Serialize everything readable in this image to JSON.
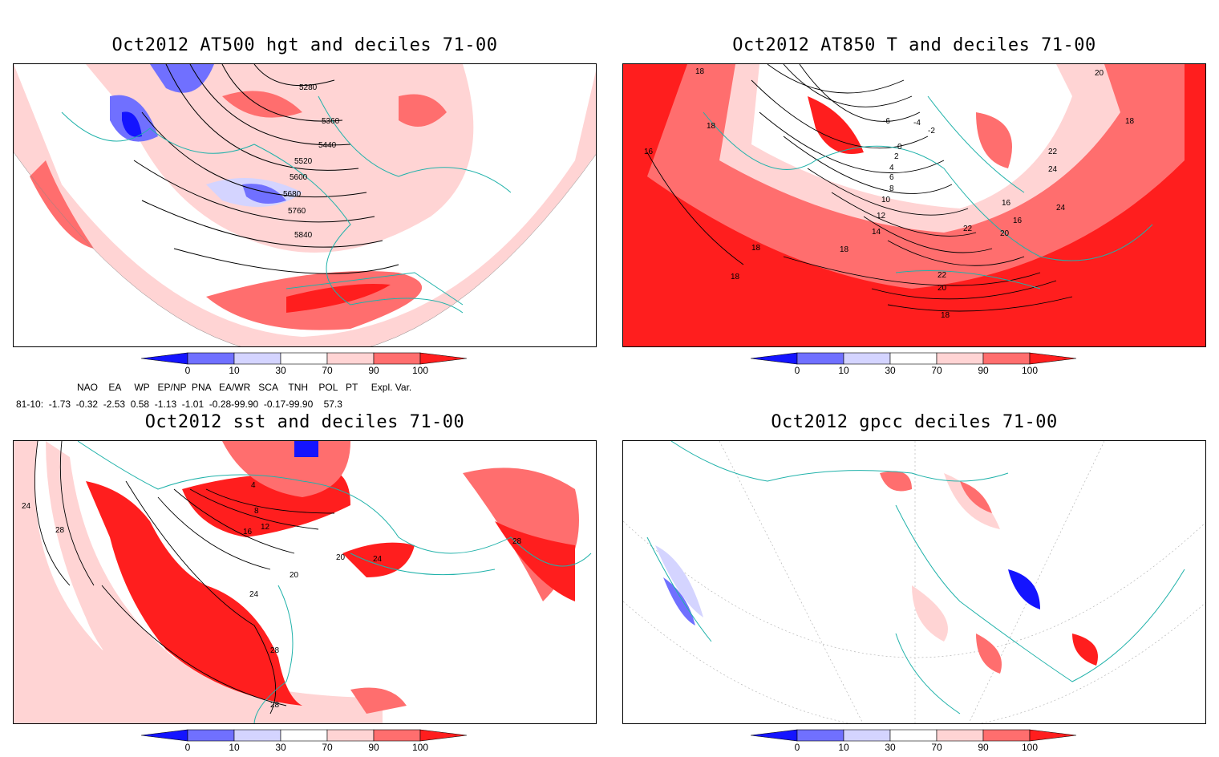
{
  "panels": [
    {
      "title": "Oct2012 AT500 hgt and deciles 71-00",
      "contour_labels": [
        "5280",
        "5360",
        "5440",
        "5520",
        "5600",
        "5680",
        "5760",
        "5840"
      ]
    },
    {
      "title": "Oct2012 AT850 T and deciles 71-00",
      "contour_labels": [
        "18",
        "18",
        "16",
        "18",
        "18",
        "18",
        "-6",
        "-4",
        "-2",
        "0",
        "2",
        "4",
        "6",
        "8",
        "10",
        "12",
        "14",
        "16",
        "16",
        "20",
        "22",
        "24",
        "24",
        "22",
        "20",
        "18",
        "22",
        "20",
        "18"
      ]
    },
    {
      "title": "Oct2012 sst and deciles 71-00",
      "contour_labels": [
        "24",
        "28",
        "4",
        "8",
        "12",
        "16",
        "20",
        "24",
        "28",
        "28",
        "20",
        "24",
        "28"
      ]
    },
    {
      "title": "Oct2012 gpcc deciles 71-00",
      "contour_labels": []
    }
  ],
  "colorbar": {
    "ticks": [
      "0",
      "10",
      "30",
      "70",
      "90",
      "100"
    ],
    "colors": [
      "#1414ff",
      "#7070ff",
      "#d4d4ff",
      "#ffffff",
      "#ffd4d4",
      "#ff6e6e",
      "#ff1e1e"
    ]
  },
  "indices": {
    "header": "NAO    EA     WP   EP/NP  PNA   EA/WR   SCA    TNH    POL   PT     Expl. Var.",
    "row": "81-10:  -1.73  -0.32  -2.53  0.58  -1.13  -1.01  -0.28-99.90  -0.17-99.90    57.3"
  },
  "colors": {
    "ocean_outline": "#20b2aa",
    "deep_red": "#ff1e1e",
    "mid_red": "#ff6e6e",
    "light_red": "#ffd4d4",
    "deep_blue": "#1414ff",
    "mid_blue": "#7070ff",
    "light_blue": "#d4d4ff"
  }
}
